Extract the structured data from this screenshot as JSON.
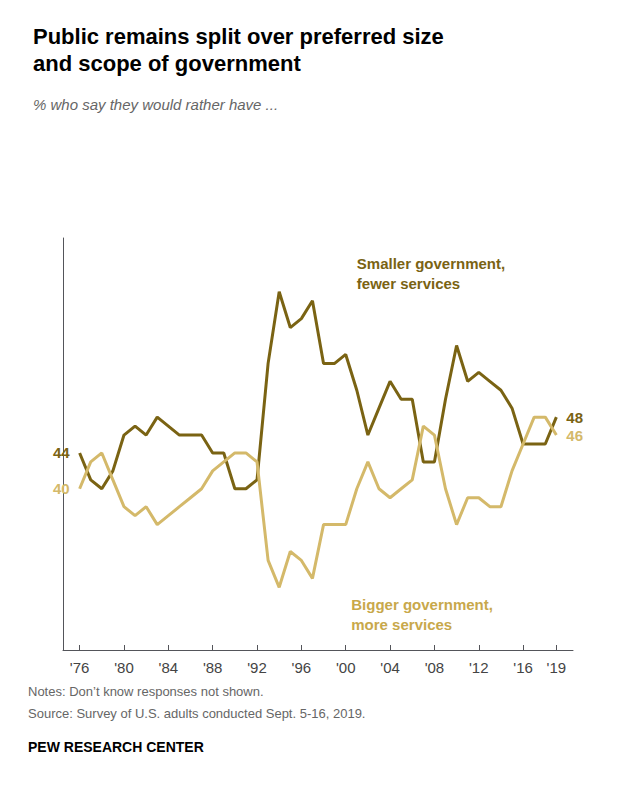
{
  "chart_data": {
    "type": "line",
    "title": "Public remains split over preferred size\nand scope of government",
    "subtitle": "% who say they would rather have ...",
    "notes": [
      "Notes: Don’t know responses not shown.",
      "Source: Survey of U.S. adults conducted Sept. 5-16, 2019."
    ],
    "attribution": "PEW RESEARCH CENTER",
    "x": [
      1976,
      1977,
      1978,
      1979,
      1980,
      1981,
      1982,
      1983,
      1984,
      1985,
      1986,
      1987,
      1988,
      1989,
      1990,
      1991,
      1992,
      1993,
      1994,
      1995,
      1996,
      1997,
      1998,
      1999,
      2000,
      2001,
      2002,
      2003,
      2004,
      2005,
      2006,
      2007,
      2008,
      2009,
      2010,
      2011,
      2012,
      2013,
      2014,
      2015,
      2016,
      2017,
      2018,
      2019
    ],
    "series": [
      {
        "color": "#7a6313",
        "values": [
          44,
          41,
          40,
          42,
          46,
          47,
          46,
          48,
          47,
          46,
          46,
          46,
          44,
          44,
          40,
          40,
          41,
          54,
          62,
          58,
          59,
          61,
          54,
          54,
          55,
          51,
          46,
          49,
          52,
          50,
          50,
          43,
          43,
          50,
          56,
          52,
          53,
          52,
          51,
          49,
          45,
          45,
          45,
          48
        ],
        "value_labels": [
          "44",
          null,
          null,
          null,
          null,
          null,
          null,
          null,
          null,
          null,
          null,
          null,
          null,
          null,
          null,
          null,
          null,
          null,
          null,
          null,
          null,
          null,
          null,
          null,
          null,
          null,
          null,
          null,
          null,
          null,
          null,
          null,
          null,
          null,
          null,
          null,
          null,
          null,
          null,
          null,
          null,
          null,
          null,
          "48"
        ]
      },
      {
        "color": "#d4b96a",
        "values": [
          40,
          43,
          44,
          41,
          38,
          37,
          38,
          36,
          37,
          38,
          39,
          40,
          42,
          43,
          44,
          44,
          43,
          32,
          29,
          33,
          32,
          30,
          36,
          36,
          36,
          40,
          43,
          40,
          39,
          40,
          41,
          47,
          46,
          40,
          36,
          39,
          39,
          38,
          38,
          42,
          45,
          48,
          48,
          46
        ],
        "value_labels": [
          "40",
          null,
          null,
          null,
          null,
          null,
          null,
          null,
          null,
          null,
          null,
          null,
          null,
          null,
          null,
          null,
          null,
          null,
          null,
          null,
          null,
          null,
          null,
          null,
          null,
          null,
          null,
          null,
          null,
          null,
          null,
          null,
          null,
          null,
          null,
          null,
          null,
          null,
          null,
          null,
          null,
          null,
          null,
          "46"
        ]
      }
    ],
    "annotations": [
      {
        "text": "Smaller government,\nfewer services",
        "x": 2001.0,
        "y": 64,
        "color": "#7a6313"
      },
      {
        "text": "Bigger government,\nmore services",
        "x": 2000.5,
        "y": 26,
        "color": "#c8a84b"
      }
    ],
    "xlim": [
      1974.5,
      2020.5
    ],
    "xticks": [
      {
        "value": 1976,
        "label": "'76"
      },
      {
        "value": 1980,
        "label": "'80"
      },
      {
        "value": 1984,
        "label": "'84"
      },
      {
        "value": 1988,
        "label": "'88"
      },
      {
        "value": 1992,
        "label": "'92"
      },
      {
        "value": 1996,
        "label": "'96"
      },
      {
        "value": 2000,
        "label": "'00"
      },
      {
        "value": 2004,
        "label": "'04"
      },
      {
        "value": 2008,
        "label": "'08"
      },
      {
        "value": 2012,
        "label": "'12"
      },
      {
        "value": 2016,
        "label": "'16"
      },
      {
        "value": 2019,
        "label": "'19"
      }
    ],
    "ylim": [
      22,
      68
    ],
    "tick_labels": "x",
    "grid": false
  }
}
